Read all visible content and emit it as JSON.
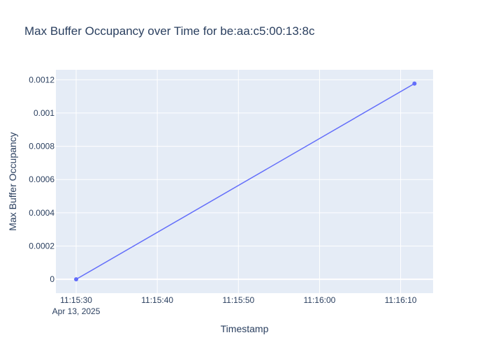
{
  "chart_data": {
    "type": "line",
    "title": "Max Buffer Occupancy over Time for be:aa:c5:00:13:8c",
    "xlabel": "Timestamp",
    "ylabel": "Max Buffer Occupancy",
    "x_ticks": [
      {
        "time": "11:15:30",
        "date": "Apr 13, 2025"
      },
      {
        "time": "11:15:40",
        "date": ""
      },
      {
        "time": "11:15:50",
        "date": ""
      },
      {
        "time": "11:16:00",
        "date": ""
      },
      {
        "time": "11:16:10",
        "date": ""
      }
    ],
    "y_ticks": [
      {
        "value": 0,
        "label": "0"
      },
      {
        "value": 0.0002,
        "label": "0.0002"
      },
      {
        "value": 0.0004,
        "label": "0.0004"
      },
      {
        "value": 0.0006,
        "label": "0.0006"
      },
      {
        "value": 0.0008,
        "label": "0.0008"
      },
      {
        "value": 0.001,
        "label": "0.001"
      },
      {
        "value": 0.0012,
        "label": "0.0012"
      }
    ],
    "xlim": [
      "2025-04-13 11:15:27.5",
      "2025-04-13 11:16:14"
    ],
    "ylim": [
      -8.33e-05,
      0.00126
    ],
    "grid": true,
    "series": [
      {
        "color": "#636efa",
        "x": [
          "2025-04-13 11:15:30",
          "2025-04-13 11:16:11.7"
        ],
        "y": [
          0,
          0.001177
        ]
      }
    ]
  },
  "colors": {
    "plot_bg": "#e5ecf6",
    "grid": "#ffffff",
    "text": "#2a3f5f",
    "line": "#636efa"
  }
}
